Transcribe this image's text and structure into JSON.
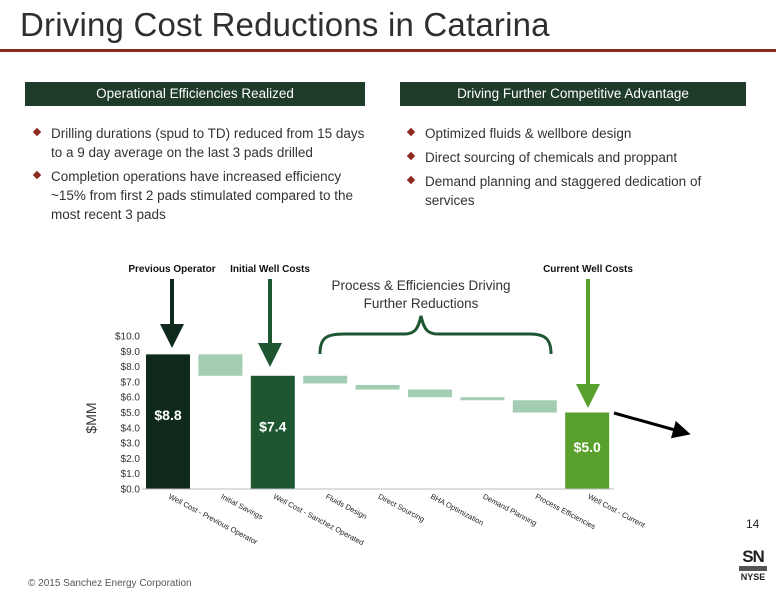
{
  "title": "Driving Cost Reductions in Catarina",
  "left_header": "Operational Efficiencies Realized",
  "right_header": "Driving Further Competitive Advantage",
  "left_bullets": [
    "Drilling durations (spud to TD) reduced from 15 days to a 9 day average on the last 3 pads drilled",
    "Completion operations have increased efficiency ~15% from first 2 pads stimulated compared to the most recent 3 pads"
  ],
  "right_bullets": [
    "Optimized fluids & wellbore design",
    "Direct sourcing of chemicals and proppant",
    "Demand planning and staggered dedication of services"
  ],
  "chart_data": {
    "type": "bar",
    "subtype": "waterfall",
    "ylabel": "$MM",
    "ylim": [
      0,
      10
    ],
    "yticks": [
      "$0.0",
      "$1.0",
      "$2.0",
      "$3.0",
      "$4.0",
      "$5.0",
      "$6.0",
      "$7.0",
      "$8.0",
      "$9.0",
      "$10.0"
    ],
    "categories": [
      "Well Cost - Previous Operator",
      "Initial Savings",
      "Well Cost - Sanchez Operated",
      "Fluids Design",
      "Direct Sourcing",
      "BHA Optimization",
      "Demand Planning",
      "Process Efficiencies",
      "Well Cost - Current"
    ],
    "bars": [
      {
        "kind": "total",
        "low": 0,
        "high": 8.8,
        "label": "$8.8",
        "color": "#0f2a1c"
      },
      {
        "kind": "step",
        "low": 7.4,
        "high": 8.8,
        "label": "",
        "color": "#a3cdb3"
      },
      {
        "kind": "total",
        "low": 0,
        "high": 7.4,
        "label": "$7.4",
        "color": "#1e5632"
      },
      {
        "kind": "step",
        "low": 6.9,
        "high": 7.4,
        "label": "",
        "color": "#a3cdb3"
      },
      {
        "kind": "step",
        "low": 6.5,
        "high": 6.8,
        "label": "",
        "color": "#a3cdb3"
      },
      {
        "kind": "step",
        "low": 6.0,
        "high": 6.5,
        "label": "",
        "color": "#a3cdb3"
      },
      {
        "kind": "step",
        "low": 5.8,
        "high": 6.0,
        "label": "",
        "color": "#a3cdb3"
      },
      {
        "kind": "step",
        "low": 5.0,
        "high": 5.8,
        "label": "",
        "color": "#a3cdb3"
      },
      {
        "kind": "total",
        "low": 0,
        "high": 5.0,
        "label": "$5.0",
        "color": "#5aa02c"
      }
    ],
    "annotations": {
      "previous_operator": "Previous Operator",
      "initial_well_costs": "Initial Well Costs",
      "current_well_costs": "Current Well Costs",
      "brace_line1": "Process & Efficiencies Driving",
      "brace_line2": "Further Reductions"
    }
  },
  "footer": {
    "page_number": "14",
    "copyright": "© 2015 Sanchez Energy Corporation",
    "logo_top": "SN",
    "logo_bottom": "NYSE"
  }
}
